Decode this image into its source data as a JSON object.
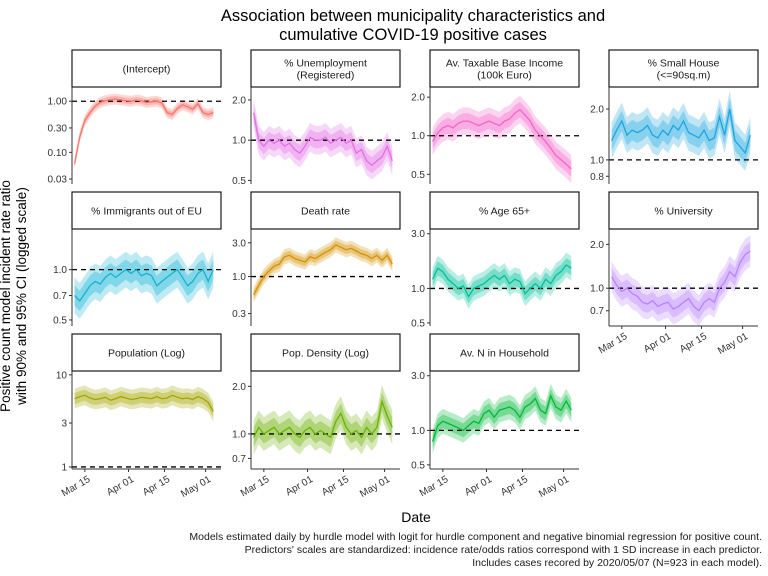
{
  "chart_data": {
    "type": "line",
    "title": "Association between municipality characteristics and\ncumulative COVID-19 positive cases",
    "xlabel": "Date",
    "ylabel": "Positive count model incident rate ratio\nwith 90% and 95% CI (logged scale)",
    "caption": [
      "Models estimated daily by hurdle model with logit for hurdle component and negative binomial regression for positive count.",
      "Predictors' scales are standardized: incidence rate/odds ratios correspond with 1 SD increase in each predictor.",
      "Includes cases recored by 2020/05/07 (N=923 in each model)."
    ],
    "x_tick_labels": [
      "Mar 15",
      "Apr 01",
      "Apr 15",
      "May 01"
    ],
    "x_tick_days": [
      15,
      32,
      46,
      62
    ],
    "x_range_days": [
      10,
      68
    ],
    "y_scale": "log",
    "reference_line": 1,
    "panels": [
      {
        "name": "(Intercept)",
        "color": "#F8766D",
        "y_range": [
          0.024,
          1.9
        ],
        "y_ticks": [
          0.03,
          0.1,
          0.3,
          1.0
        ],
        "y_tick_labels": [
          "0.03",
          "0.10",
          "0.30",
          "1.00"
        ],
        "x_days": [
          11,
          13,
          15,
          17,
          19,
          21,
          23,
          25,
          27,
          29,
          31,
          33,
          35,
          37,
          39,
          41,
          43,
          45,
          47,
          49,
          51,
          53,
          55,
          57,
          59,
          61,
          63,
          65
        ],
        "values": [
          0.06,
          0.2,
          0.42,
          0.6,
          0.8,
          0.95,
          1.02,
          1.08,
          1.1,
          1.06,
          1.03,
          1.0,
          1.05,
          1.02,
          0.95,
          0.98,
          1.0,
          0.92,
          0.6,
          0.55,
          0.72,
          0.85,
          0.78,
          0.7,
          0.9,
          0.6,
          0.55,
          0.6
        ]
      },
      {
        "name": "% Unemployment\n(Registered)",
        "color": "#E36EE6",
        "y_range": [
          0.47,
          2.5
        ],
        "y_ticks": [
          0.5,
          1.0,
          2.0
        ],
        "y_tick_labels": [
          "0.5",
          "1.0",
          "2.0"
        ],
        "x_days": [
          11,
          13,
          15,
          17,
          19,
          21,
          23,
          25,
          27,
          29,
          31,
          33,
          35,
          37,
          39,
          41,
          43,
          45,
          47,
          49,
          51,
          53,
          55,
          57,
          59,
          61,
          63,
          65
        ],
        "values": [
          1.6,
          1.0,
          0.9,
          1.0,
          0.95,
          1.0,
          0.9,
          0.95,
          0.85,
          0.8,
          0.9,
          1.05,
          1.0,
          1.0,
          1.05,
          0.95,
          1.0,
          1.05,
          0.95,
          1.0,
          0.8,
          0.85,
          0.7,
          0.65,
          0.7,
          0.75,
          0.9,
          0.7
        ]
      },
      {
        "name": "Av. Taxable Base Income\n(100k Euro)",
        "color": "#F564C8",
        "y_range": [
          0.42,
          2.4
        ],
        "y_ticks": [
          0.5,
          1.0,
          2.0
        ],
        "y_tick_labels": [
          "0.5",
          "1.0",
          "2.0"
        ],
        "x_days": [
          11,
          13,
          15,
          17,
          19,
          21,
          23,
          25,
          27,
          29,
          31,
          33,
          35,
          37,
          39,
          41,
          43,
          45,
          47,
          49,
          51,
          53,
          55,
          57,
          59,
          61,
          63,
          65
        ],
        "values": [
          0.9,
          1.05,
          1.15,
          1.2,
          1.15,
          1.25,
          1.3,
          1.3,
          1.25,
          1.2,
          1.25,
          1.3,
          1.25,
          1.2,
          1.3,
          1.35,
          1.5,
          1.6,
          1.45,
          1.3,
          1.1,
          1.0,
          0.9,
          0.8,
          0.7,
          0.65,
          0.6,
          0.55
        ]
      },
      {
        "name": "% Small House\n(<=90sq.m)",
        "color": "#1EA5E0",
        "y_range": [
          0.72,
          2.7
        ],
        "y_ticks": [
          0.8,
          1.0,
          2.0
        ],
        "y_tick_labels": [
          "0.8",
          "1.0",
          "2.0"
        ],
        "x_days": [
          11,
          13,
          15,
          17,
          19,
          21,
          23,
          25,
          27,
          29,
          31,
          33,
          35,
          37,
          39,
          41,
          43,
          45,
          47,
          49,
          51,
          53,
          55,
          57,
          59,
          61,
          63,
          65
        ],
        "values": [
          1.3,
          1.5,
          1.7,
          1.4,
          1.5,
          1.45,
          1.5,
          1.6,
          1.4,
          1.35,
          1.5,
          1.4,
          1.6,
          1.5,
          1.7,
          1.45,
          1.4,
          1.35,
          1.5,
          1.3,
          1.35,
          1.8,
          1.4,
          2.0,
          1.3,
          1.2,
          1.1,
          1.4
        ]
      },
      {
        "name": "% Immigrants out of EU",
        "color": "#12B3D3",
        "y_range": [
          0.46,
          1.75
        ],
        "y_ticks": [
          0.5,
          0.7,
          1.0
        ],
        "y_tick_labels": [
          "0.5",
          "0.7",
          "1.0"
        ],
        "x_days": [
          11,
          13,
          15,
          17,
          19,
          21,
          23,
          25,
          27,
          29,
          31,
          33,
          35,
          37,
          39,
          41,
          43,
          45,
          47,
          49,
          51,
          53,
          55,
          57,
          59,
          61,
          63,
          65
        ],
        "values": [
          0.7,
          0.65,
          0.72,
          0.8,
          0.85,
          0.82,
          0.9,
          0.95,
          0.9,
          0.95,
          1.0,
          0.95,
          1.0,
          0.92,
          0.95,
          0.92,
          0.8,
          0.85,
          0.9,
          0.95,
          1.0,
          0.9,
          0.8,
          0.85,
          0.95,
          1.0,
          0.85,
          1.0
        ]
      },
      {
        "name": "Death rate",
        "color": "#D39200",
        "y_range": [
          0.2,
          4.7
        ],
        "y_ticks": [
          0.3,
          1.0,
          3.0
        ],
        "y_tick_labels": [
          "0.3",
          "1.0",
          "3.0"
        ],
        "x_days": [
          11,
          13,
          15,
          17,
          19,
          21,
          23,
          25,
          27,
          29,
          31,
          33,
          35,
          37,
          39,
          41,
          43,
          45,
          47,
          49,
          51,
          53,
          55,
          57,
          59,
          61,
          63,
          65
        ],
        "values": [
          0.55,
          0.75,
          1.0,
          1.2,
          1.4,
          1.5,
          1.9,
          2.0,
          1.8,
          1.7,
          1.6,
          1.9,
          1.8,
          2.0,
          2.2,
          2.4,
          2.8,
          2.6,
          2.4,
          2.5,
          2.3,
          2.1,
          2.0,
          1.8,
          2.0,
          1.7,
          2.0,
          1.5
        ]
      },
      {
        "name": "% Age 65+",
        "color": "#00C19A",
        "y_range": [
          0.47,
          3.3
        ],
        "y_ticks": [
          0.5,
          1.0,
          3.0
        ],
        "y_tick_labels": [
          "0.5",
          "1.0",
          "3.0"
        ],
        "x_days": [
          11,
          13,
          15,
          17,
          19,
          21,
          23,
          25,
          27,
          29,
          31,
          33,
          35,
          37,
          39,
          41,
          43,
          45,
          47,
          49,
          51,
          53,
          55,
          57,
          59,
          61,
          63,
          65
        ],
        "values": [
          1.2,
          1.5,
          1.4,
          1.2,
          1.1,
          1.0,
          1.05,
          0.85,
          1.0,
          1.05,
          1.1,
          1.2,
          1.3,
          1.2,
          1.3,
          1.1,
          1.2,
          1.15,
          0.9,
          1.0,
          1.1,
          1.0,
          1.2,
          1.1,
          1.3,
          1.4,
          1.6,
          1.5
        ]
      },
      {
        "name": "% University",
        "color": "#B983FF",
        "y_range": [
          0.55,
          2.55
        ],
        "y_ticks": [
          0.7,
          1.0,
          2.0
        ],
        "y_tick_labels": [
          "0.7",
          "1.0",
          "2.0"
        ],
        "x_days": [
          11,
          13,
          15,
          17,
          19,
          21,
          23,
          25,
          27,
          29,
          31,
          33,
          35,
          37,
          39,
          41,
          43,
          45,
          47,
          49,
          51,
          53,
          55,
          57,
          59,
          61,
          63,
          65
        ],
        "values": [
          1.2,
          1.05,
          0.95,
          1.0,
          0.92,
          0.88,
          0.8,
          0.78,
          0.82,
          0.75,
          0.78,
          0.8,
          0.72,
          0.75,
          0.8,
          0.85,
          0.75,
          0.7,
          0.8,
          0.85,
          0.8,
          1.0,
          1.1,
          1.3,
          1.2,
          1.5,
          1.7,
          1.8
        ]
      },
      {
        "name": "Population (Log)",
        "color": "#A3A500",
        "y_range": [
          0.95,
          11
        ],
        "y_ticks": [
          1,
          3,
          10
        ],
        "y_tick_labels": [
          "1",
          "3",
          "10"
        ],
        "x_days": [
          11,
          13,
          15,
          17,
          19,
          21,
          23,
          25,
          27,
          29,
          31,
          33,
          35,
          37,
          39,
          41,
          43,
          45,
          47,
          49,
          51,
          53,
          55,
          57,
          59,
          61,
          63,
          65
        ],
        "values": [
          5.5,
          5.8,
          6.0,
          5.6,
          5.4,
          5.5,
          5.7,
          5.3,
          5.5,
          5.8,
          5.6,
          5.4,
          5.5,
          5.7,
          5.6,
          5.5,
          5.8,
          5.5,
          5.6,
          6.0,
          5.7,
          5.5,
          5.6,
          5.4,
          5.8,
          5.5,
          5.0,
          4.0
        ]
      },
      {
        "name": "Pop. Density (Log)",
        "color": "#6BB100",
        "y_range": [
          0.6,
          2.5
        ],
        "y_ticks": [
          0.7,
          1.0,
          2.0
        ],
        "y_tick_labels": [
          "0.7",
          "1.0",
          "2.0"
        ],
        "x_days": [
          11,
          13,
          15,
          17,
          19,
          21,
          23,
          25,
          27,
          29,
          31,
          33,
          35,
          37,
          39,
          41,
          43,
          45,
          47,
          49,
          51,
          53,
          55,
          57,
          59,
          61,
          63,
          65
        ],
        "values": [
          0.95,
          1.1,
          1.0,
          1.05,
          1.1,
          1.0,
          1.05,
          1.1,
          1.0,
          0.95,
          1.05,
          1.1,
          1.0,
          1.05,
          1.0,
          0.95,
          1.2,
          1.35,
          1.1,
          1.0,
          1.05,
          0.95,
          1.1,
          1.0,
          1.1,
          1.6,
          1.3,
          1.1
        ]
      },
      {
        "name": "Av. N in Household",
        "color": "#00BA38",
        "y_range": [
          0.46,
          3.3
        ],
        "y_ticks": [
          0.5,
          1.0,
          3.0
        ],
        "y_tick_labels": [
          "0.5",
          "1.0",
          "3.0"
        ],
        "x_days": [
          11,
          13,
          15,
          17,
          19,
          21,
          23,
          25,
          27,
          29,
          31,
          33,
          35,
          37,
          39,
          41,
          43,
          45,
          47,
          49,
          51,
          53,
          55,
          57,
          59,
          61,
          63,
          65
        ],
        "values": [
          0.8,
          1.1,
          1.2,
          1.15,
          1.1,
          1.05,
          1.0,
          1.1,
          1.2,
          1.15,
          1.4,
          1.5,
          1.3,
          1.5,
          1.55,
          1.6,
          1.5,
          1.3,
          1.6,
          1.7,
          1.9,
          1.5,
          1.4,
          2.0,
          1.6,
          1.5,
          1.8,
          1.5
        ]
      }
    ]
  }
}
